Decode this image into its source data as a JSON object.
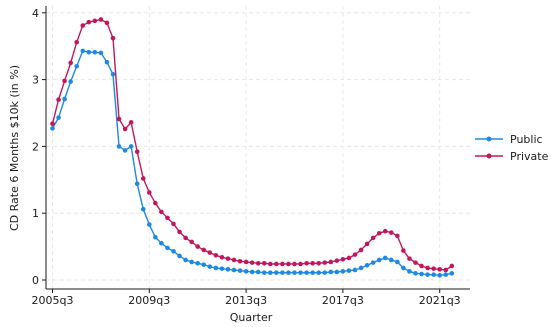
{
  "chart_data": {
    "type": "line",
    "xlabel": "Quarter",
    "ylabel": "CD Rate 6 Months $10k (in %)",
    "xlim": [
      0,
      72
    ],
    "ylim": [
      0,
      4
    ],
    "x_ticks": [
      {
        "label": "2005q3",
        "q": 0
      },
      {
        "label": "2009q3",
        "q": 16
      },
      {
        "label": "2013q3",
        "q": 32
      },
      {
        "label": "2017q3",
        "q": 48
      },
      {
        "label": "2021q3",
        "q": 64
      }
    ],
    "y_ticks": [
      0,
      1,
      2,
      3,
      4
    ],
    "grid": true,
    "legend_position": "right",
    "x": [
      "2005q3",
      "2005q4",
      "2006q1",
      "2006q2",
      "2006q3",
      "2006q4",
      "2007q1",
      "2007q2",
      "2007q3",
      "2007q4",
      "2008q1",
      "2008q2",
      "2008q3",
      "2008q4",
      "2009q1",
      "2009q2",
      "2009q3",
      "2009q4",
      "2010q1",
      "2010q2",
      "2010q3",
      "2010q4",
      "2011q1",
      "2011q2",
      "2011q3",
      "2011q4",
      "2012q1",
      "2012q2",
      "2012q3",
      "2012q4",
      "2013q1",
      "2013q2",
      "2013q3",
      "2013q4",
      "2014q1",
      "2014q2",
      "2014q3",
      "2014q4",
      "2015q1",
      "2015q2",
      "2015q3",
      "2015q4",
      "2016q1",
      "2016q2",
      "2016q3",
      "2016q4",
      "2017q1",
      "2017q2",
      "2017q3",
      "2017q4",
      "2018q1",
      "2018q2",
      "2018q3",
      "2018q4",
      "2019q1",
      "2019q2",
      "2019q3",
      "2019q4",
      "2020q1",
      "2020q2",
      "2020q3",
      "2020q4",
      "2021q1",
      "2021q2",
      "2021q3",
      "2021q4",
      "2022q1"
    ],
    "series": [
      {
        "name": "Public",
        "color": "#1e88e5",
        "values": [
          2.27,
          2.43,
          2.71,
          2.97,
          3.2,
          3.43,
          3.41,
          3.41,
          3.4,
          3.26,
          3.08,
          2.0,
          1.94,
          2.0,
          1.44,
          1.06,
          0.83,
          0.64,
          0.55,
          0.48,
          0.43,
          0.36,
          0.3,
          0.27,
          0.25,
          0.23,
          0.2,
          0.18,
          0.17,
          0.16,
          0.15,
          0.14,
          0.13,
          0.12,
          0.12,
          0.11,
          0.11,
          0.11,
          0.11,
          0.11,
          0.11,
          0.11,
          0.11,
          0.11,
          0.11,
          0.11,
          0.12,
          0.12,
          0.13,
          0.14,
          0.15,
          0.18,
          0.22,
          0.26,
          0.3,
          0.33,
          0.3,
          0.27,
          0.18,
          0.13,
          0.1,
          0.09,
          0.08,
          0.08,
          0.07,
          0.08,
          0.1
        ]
      },
      {
        "name": "Private",
        "color": "#c2185b",
        "values": [
          2.34,
          2.7,
          2.98,
          3.25,
          3.56,
          3.81,
          3.86,
          3.88,
          3.9,
          3.85,
          3.62,
          2.41,
          2.26,
          2.36,
          1.92,
          1.52,
          1.31,
          1.15,
          1.02,
          0.93,
          0.84,
          0.72,
          0.63,
          0.57,
          0.5,
          0.45,
          0.41,
          0.37,
          0.34,
          0.32,
          0.3,
          0.28,
          0.27,
          0.26,
          0.25,
          0.25,
          0.24,
          0.24,
          0.24,
          0.24,
          0.24,
          0.24,
          0.25,
          0.25,
          0.25,
          0.26,
          0.27,
          0.29,
          0.31,
          0.33,
          0.38,
          0.45,
          0.54,
          0.63,
          0.7,
          0.73,
          0.71,
          0.66,
          0.44,
          0.32,
          0.26,
          0.21,
          0.18,
          0.17,
          0.16,
          0.15,
          0.21
        ]
      }
    ]
  }
}
